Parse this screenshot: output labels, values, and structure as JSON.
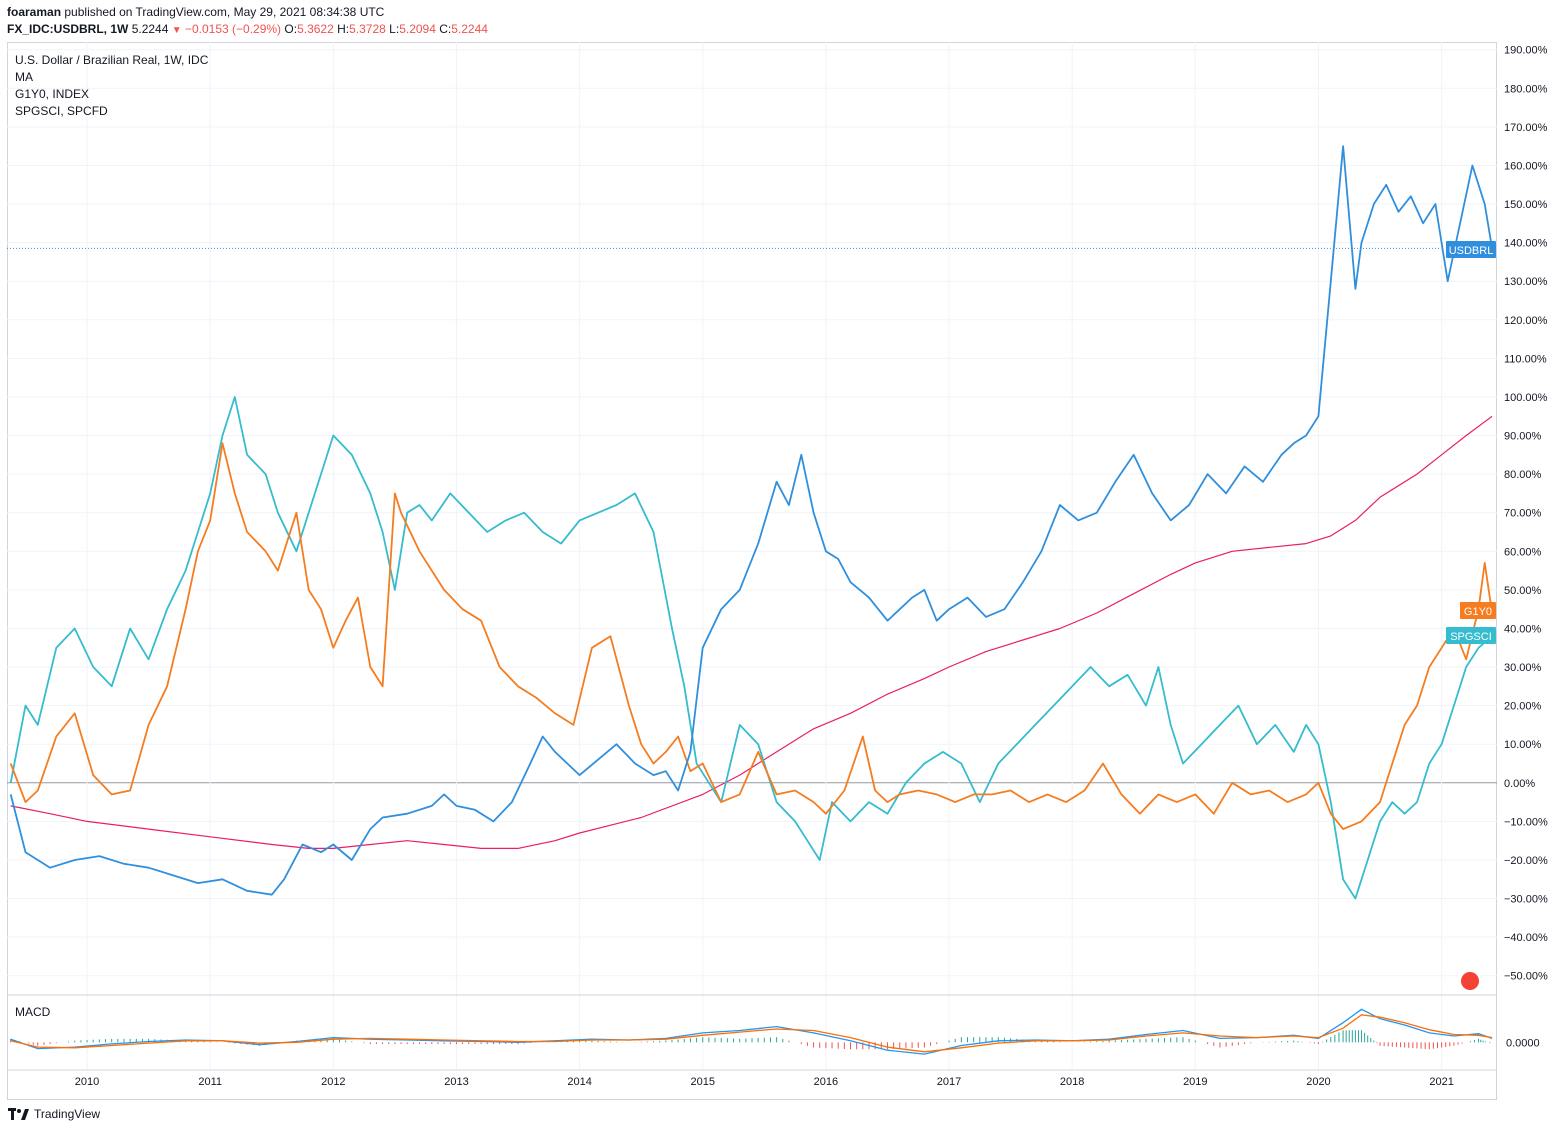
{
  "header": {
    "author": "foaraman",
    "published_text": "published on TradingView.com, May 29, 2021 08:34:38 UTC",
    "symbol": "FX_IDC:USDBRL, 1W",
    "price": "5.2244",
    "change": "−0.0153 (−0.29%)",
    "o_label": "O:",
    "o_value": "5.3622",
    "h_label": "H:",
    "h_value": "5.3728",
    "l_label": "L:",
    "l_value": "5.2094",
    "c_label": "C:",
    "c_value": "5.2244"
  },
  "legend": {
    "main": "U.S. Dollar / Brazilian Real, 1W, IDC",
    "ma": "MA",
    "g1y0": "G1Y0, INDEX",
    "spgsci": "SPGSCI, SPCFD"
  },
  "macd": {
    "label": "MACD",
    "value_label": "0.0000"
  },
  "footer": {
    "brand": "TradingView"
  },
  "colors": {
    "usdbrl": "#2f8fdd",
    "g1y0": "#f57c1f",
    "spgsci": "#35bcce",
    "ma": "#e91e63",
    "macd_line": "#2196f3",
    "signal_line": "#ff6d00",
    "hist_up": "#26a69a",
    "hist_down": "#ef5350"
  },
  "chart_data": {
    "type": "line",
    "yunit": "%",
    "ylim": [
      -55,
      192
    ],
    "xlim": [
      2009.35,
      2021.45
    ],
    "y_ticks": [
      "190.00%",
      "180.00%",
      "170.00%",
      "160.00%",
      "150.00%",
      "140.00%",
      "130.00%",
      "120.00%",
      "110.00%",
      "100.00%",
      "90.00%",
      "80.00%",
      "70.00%",
      "60.00%",
      "50.00%",
      "40.00%",
      "30.00%",
      "20.00%",
      "10.00%",
      "0.00%",
      "−10.00%",
      "−20.00%",
      "−30.00%",
      "−40.00%",
      "−50.00%"
    ],
    "x_ticks": [
      "2010",
      "2011",
      "2012",
      "2013",
      "2014",
      "2015",
      "2016",
      "2017",
      "2018",
      "2019",
      "2020",
      "2021"
    ],
    "grid": true,
    "series": [
      {
        "name": "USDBRL",
        "tag": "USDBRL",
        "last": 138.5,
        "x": [
          2009.38,
          2009.5,
          2009.7,
          2009.9,
          2010.1,
          2010.3,
          2010.5,
          2010.7,
          2010.9,
          2011.1,
          2011.3,
          2011.5,
          2011.6,
          2011.75,
          2011.9,
          2012.0,
          2012.15,
          2012.3,
          2012.4,
          2012.6,
          2012.8,
          2012.9,
          2013.0,
          2013.15,
          2013.3,
          2013.45,
          2013.6,
          2013.7,
          2013.8,
          2013.9,
          2014.0,
          2014.15,
          2014.3,
          2014.45,
          2014.6,
          2014.7,
          2014.8,
          2014.9,
          2015.0,
          2015.15,
          2015.3,
          2015.45,
          2015.6,
          2015.7,
          2015.8,
          2015.9,
          2016.0,
          2016.1,
          2016.2,
          2016.35,
          2016.5,
          2016.6,
          2016.7,
          2016.8,
          2016.9,
          2017.0,
          2017.15,
          2017.3,
          2017.45,
          2017.6,
          2017.75,
          2017.9,
          2018.05,
          2018.2,
          2018.35,
          2018.5,
          2018.65,
          2018.8,
          2018.95,
          2019.1,
          2019.25,
          2019.4,
          2019.55,
          2019.7,
          2019.8,
          2019.9,
          2020.0,
          2020.1,
          2020.2,
          2020.3,
          2020.35,
          2020.45,
          2020.55,
          2020.65,
          2020.75,
          2020.85,
          2020.95,
          2021.05,
          2021.15,
          2021.25,
          2021.35,
          2021.41
        ],
        "y": [
          -3,
          -18,
          -22,
          -20,
          -19,
          -21,
          -22,
          -24,
          -26,
          -25,
          -28,
          -29,
          -25,
          -16,
          -18,
          -16,
          -20,
          -12,
          -9,
          -8,
          -6,
          -3,
          -6,
          -7,
          -10,
          -5,
          5,
          12,
          8,
          5,
          2,
          6,
          10,
          5,
          2,
          3,
          -2,
          8,
          35,
          45,
          50,
          62,
          78,
          72,
          85,
          70,
          60,
          58,
          52,
          48,
          42,
          45,
          48,
          50,
          42,
          45,
          48,
          43,
          45,
          52,
          60,
          72,
          68,
          70,
          78,
          85,
          75,
          68,
          72,
          80,
          75,
          82,
          78,
          85,
          88,
          90,
          95,
          130,
          165,
          128,
          140,
          150,
          155,
          148,
          152,
          145,
          150,
          130,
          145,
          160,
          150,
          138.5
        ]
      },
      {
        "name": "G1Y0",
        "tag": "G1Y0",
        "last": 44,
        "x": [
          2009.38,
          2009.5,
          2009.6,
          2009.75,
          2009.9,
          2010.05,
          2010.2,
          2010.35,
          2010.5,
          2010.65,
          2010.8,
          2010.9,
          2011.0,
          2011.1,
          2011.2,
          2011.3,
          2011.45,
          2011.55,
          2011.7,
          2011.8,
          2011.9,
          2012.0,
          2012.1,
          2012.2,
          2012.3,
          2012.4,
          2012.5,
          2012.55,
          2012.7,
          2012.8,
          2012.9,
          2013.05,
          2013.2,
          2013.35,
          2013.5,
          2013.65,
          2013.8,
          2013.95,
          2014.1,
          2014.25,
          2014.4,
          2014.5,
          2014.6,
          2014.7,
          2014.8,
          2014.9,
          2015.0,
          2015.15,
          2015.3,
          2015.45,
          2015.6,
          2015.75,
          2015.9,
          2016.0,
          2016.15,
          2016.3,
          2016.4,
          2016.5,
          2016.6,
          2016.75,
          2016.9,
          2017.05,
          2017.2,
          2017.35,
          2017.5,
          2017.65,
          2017.8,
          2017.95,
          2018.1,
          2018.25,
          2018.4,
          2018.55,
          2018.7,
          2018.85,
          2019.0,
          2019.15,
          2019.3,
          2019.45,
          2019.6,
          2019.75,
          2019.9,
          2020.0,
          2020.1,
          2020.2,
          2020.35,
          2020.5,
          2020.6,
          2020.7,
          2020.8,
          2020.9,
          2021.0,
          2021.1,
          2021.2,
          2021.3,
          2021.35,
          2021.41
        ],
        "y": [
          5,
          -5,
          -2,
          12,
          18,
          2,
          -3,
          -2,
          15,
          25,
          45,
          60,
          68,
          88,
          75,
          65,
          60,
          55,
          70,
          50,
          45,
          35,
          42,
          48,
          30,
          25,
          75,
          70,
          60,
          55,
          50,
          45,
          42,
          30,
          25,
          22,
          18,
          15,
          35,
          38,
          20,
          10,
          5,
          8,
          12,
          3,
          5,
          -5,
          -3,
          8,
          -3,
          -2,
          -5,
          -8,
          -2,
          12,
          -2,
          -5,
          -3,
          -2,
          -3,
          -5,
          -3,
          -3,
          -2,
          -5,
          -3,
          -5,
          -2,
          5,
          -3,
          -8,
          -3,
          -5,
          -3,
          -8,
          0,
          -3,
          -2,
          -5,
          -3,
          0,
          -8,
          -12,
          -10,
          -5,
          5,
          15,
          20,
          30,
          35,
          40,
          32,
          45,
          57,
          44
        ]
      },
      {
        "name": "SPGSCI",
        "tag": "SPGSCI",
        "last": 38,
        "x": [
          2009.38,
          2009.5,
          2009.6,
          2009.75,
          2009.9,
          2010.05,
          2010.2,
          2010.35,
          2010.5,
          2010.65,
          2010.8,
          2010.9,
          2011.0,
          2011.1,
          2011.2,
          2011.3,
          2011.45,
          2011.55,
          2011.7,
          2011.8,
          2011.9,
          2012.0,
          2012.15,
          2012.3,
          2012.4,
          2012.5,
          2012.6,
          2012.7,
          2012.8,
          2012.95,
          2013.1,
          2013.25,
          2013.4,
          2013.55,
          2013.7,
          2013.85,
          2014.0,
          2014.15,
          2014.3,
          2014.45,
          2014.6,
          2014.75,
          2014.85,
          2014.95,
          2015.05,
          2015.15,
          2015.3,
          2015.45,
          2015.6,
          2015.75,
          2015.85,
          2015.95,
          2016.05,
          2016.2,
          2016.35,
          2016.5,
          2016.65,
          2016.8,
          2016.95,
          2017.1,
          2017.25,
          2017.4,
          2017.55,
          2017.7,
          2017.85,
          2018.0,
          2018.15,
          2018.3,
          2018.45,
          2018.6,
          2018.7,
          2018.8,
          2018.9,
          2019.05,
          2019.2,
          2019.35,
          2019.5,
          2019.65,
          2019.8,
          2019.9,
          2020.0,
          2020.1,
          2020.2,
          2020.3,
          2020.4,
          2020.5,
          2020.6,
          2020.7,
          2020.8,
          2020.9,
          2021.0,
          2021.1,
          2021.2,
          2021.3,
          2021.41
        ],
        "y": [
          0,
          20,
          15,
          35,
          40,
          30,
          25,
          40,
          32,
          45,
          55,
          65,
          75,
          90,
          100,
          85,
          80,
          70,
          60,
          70,
          80,
          90,
          85,
          75,
          65,
          50,
          70,
          72,
          68,
          75,
          70,
          65,
          68,
          70,
          65,
          62,
          68,
          70,
          72,
          75,
          65,
          40,
          25,
          5,
          0,
          -5,
          15,
          10,
          -5,
          -10,
          -15,
          -20,
          -5,
          -10,
          -5,
          -8,
          0,
          5,
          8,
          5,
          -5,
          5,
          10,
          15,
          20,
          25,
          30,
          25,
          28,
          20,
          30,
          15,
          5,
          10,
          15,
          20,
          10,
          15,
          8,
          15,
          10,
          -5,
          -25,
          -30,
          -20,
          -10,
          -5,
          -8,
          -5,
          5,
          10,
          20,
          30,
          35,
          38
        ]
      },
      {
        "name": "MA",
        "last": 95,
        "x": [
          2009.38,
          2009.7,
          2010.0,
          2010.5,
          2011.0,
          2011.5,
          2011.8,
          2012.0,
          2012.3,
          2012.6,
          2012.9,
          2013.2,
          2013.5,
          2013.8,
          2014.0,
          2014.5,
          2015.0,
          2015.3,
          2015.6,
          2015.9,
          2016.2,
          2016.5,
          2016.8,
          2017.0,
          2017.3,
          2017.6,
          2017.9,
          2018.2,
          2018.5,
          2018.8,
          2019.0,
          2019.3,
          2019.6,
          2019.9,
          2020.1,
          2020.3,
          2020.5,
          2020.8,
          2021.0,
          2021.2,
          2021.41
        ],
        "y": [
          -6,
          -8,
          -10,
          -12,
          -14,
          -16,
          -17,
          -17,
          -16,
          -15,
          -16,
          -17,
          -17,
          -15,
          -13,
          -9,
          -3,
          2,
          8,
          14,
          18,
          23,
          27,
          30,
          34,
          37,
          40,
          44,
          49,
          54,
          57,
          60,
          61,
          62,
          64,
          68,
          74,
          80,
          85,
          90,
          95
        ]
      }
    ],
    "macd": {
      "x": [
        2009.38,
        2009.6,
        2009.9,
        2010.2,
        2010.5,
        2010.8,
        2011.1,
        2011.4,
        2011.7,
        2012.0,
        2012.3,
        2012.6,
        2012.9,
        2013.2,
        2013.5,
        2013.8,
        2014.1,
        2014.4,
        2014.7,
        2015.0,
        2015.3,
        2015.6,
        2015.9,
        2016.2,
        2016.5,
        2016.8,
        2017.1,
        2017.4,
        2017.7,
        2018.0,
        2018.3,
        2018.6,
        2018.9,
        2019.2,
        2019.5,
        2019.8,
        2020.0,
        2020.2,
        2020.35,
        2020.5,
        2020.7,
        2020.9,
        2021.1,
        2021.3,
        2021.41
      ],
      "macd": [
        0.4,
        -0.8,
        -0.6,
        -0.2,
        0.1,
        0.3,
        0.2,
        -0.3,
        0.1,
        0.6,
        0.4,
        0.3,
        0.2,
        0.1,
        0.0,
        0.2,
        0.4,
        0.3,
        0.5,
        1.2,
        1.5,
        2.0,
        1.2,
        0.2,
        -1.0,
        -1.5,
        -0.4,
        0.2,
        0.3,
        0.2,
        0.4,
        1.0,
        1.5,
        0.5,
        0.6,
        0.9,
        0.5,
        2.5,
        4.2,
        3.0,
        2.2,
        1.2,
        0.8,
        1.1,
        0.5
      ],
      "signal": [
        0.2,
        -0.6,
        -0.7,
        -0.4,
        -0.1,
        0.2,
        0.2,
        -0.1,
        0.0,
        0.4,
        0.5,
        0.4,
        0.3,
        0.2,
        0.1,
        0.1,
        0.3,
        0.3,
        0.4,
        0.9,
        1.3,
        1.7,
        1.5,
        0.6,
        -0.6,
        -1.2,
        -0.7,
        -0.1,
        0.2,
        0.2,
        0.3,
        0.8,
        1.2,
        0.8,
        0.6,
        0.8,
        0.6,
        1.8,
        3.5,
        3.2,
        2.5,
        1.6,
        1.0,
        0.9,
        0.6
      ]
    }
  }
}
